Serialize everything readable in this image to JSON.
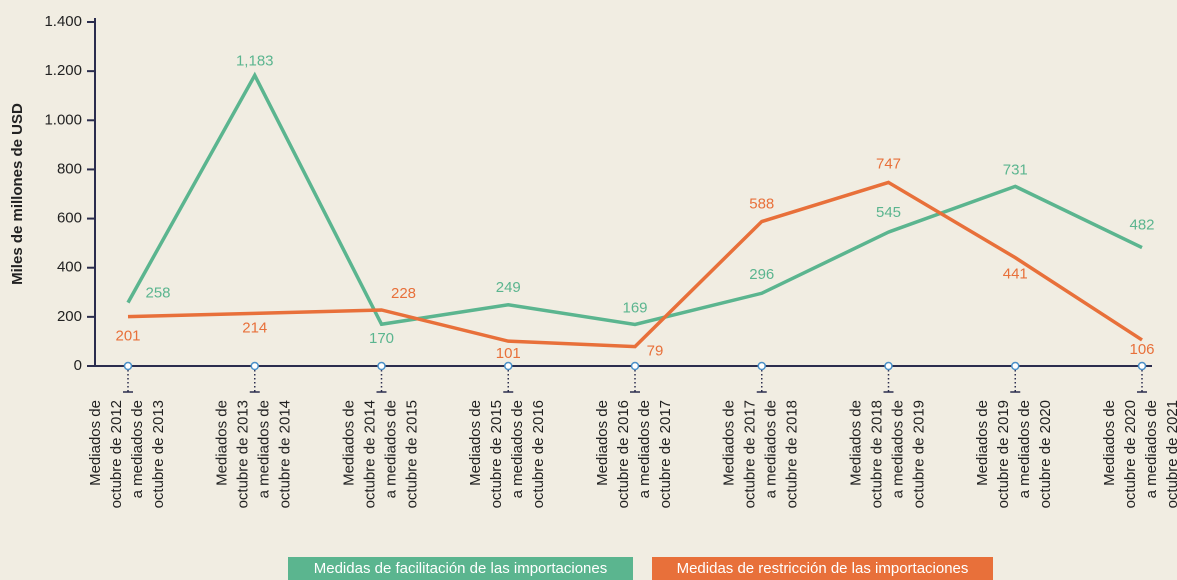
{
  "chart_data": {
    "type": "line",
    "y_label": "Miles de millones de USD",
    "categories": [
      [
        "Mediados de",
        "octubre de 2012",
        "a mediados de",
        "octubre de 2013"
      ],
      [
        "Mediados de",
        "octubre de 2013",
        "a mediados de",
        "octubre de 2014"
      ],
      [
        "Mediados de",
        "octubre de 2014",
        "a mediados de",
        "octubre de 2015"
      ],
      [
        "Mediados de",
        "octubre de 2015",
        "a mediados de",
        "octubre de 2016"
      ],
      [
        "Mediados de",
        "octubre de 2016",
        "a mediados de",
        "octubre de 2017"
      ],
      [
        "Mediados de",
        "octubre de 2017",
        "a mediados de",
        "octubre de 2018"
      ],
      [
        "Mediados de",
        "octubre de 2018",
        "a mediados de",
        "octubre de 2019"
      ],
      [
        "Mediados de",
        "octubre de 2019",
        "a mediados de",
        "octubre de 2020"
      ],
      [
        "Mediados de",
        "octubre de 2020",
        "a mediados de",
        "octubre de 2021"
      ]
    ],
    "series": [
      {
        "name": "Medidas de facilitación de las importaciones",
        "color": "#5bb58f",
        "values": [
          258,
          1183,
          170,
          249,
          169,
          296,
          545,
          731,
          482
        ],
        "value_labels": [
          "258",
          "1,183",
          "170",
          "249",
          "169",
          "296",
          "545",
          "731",
          "482"
        ]
      },
      {
        "name": "Medidas de restricción de las importaciones",
        "color": "#e8703a",
        "values": [
          201,
          214,
          228,
          101,
          79,
          588,
          747,
          441,
          106
        ]
      }
    ],
    "ylim": [
      0,
      1400
    ],
    "yticks": [
      0,
      200,
      400,
      600,
      800,
      {
        "value": 1000,
        "label": "1.000"
      },
      {
        "value": 1200,
        "label": "1.200"
      },
      {
        "value": 1400,
        "label": "1.400"
      }
    ]
  }
}
